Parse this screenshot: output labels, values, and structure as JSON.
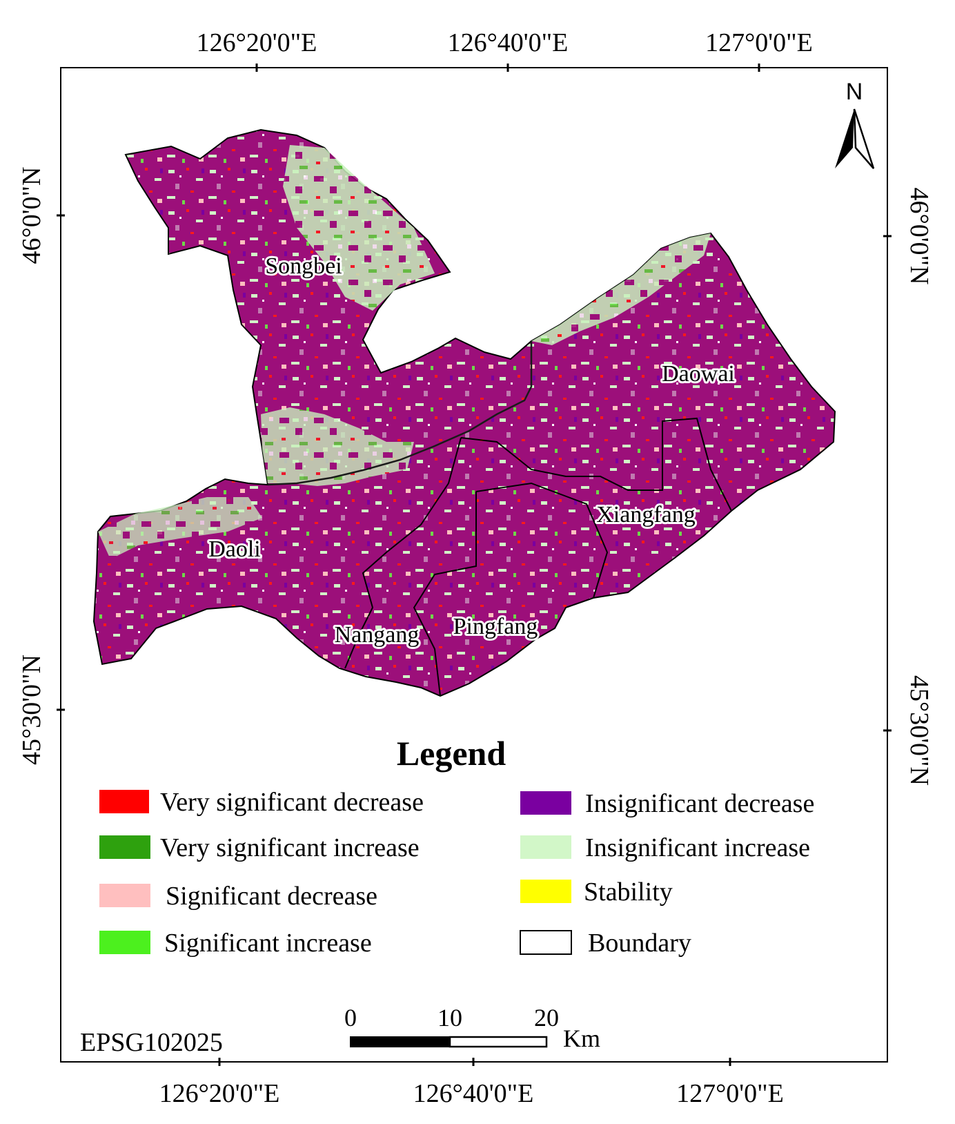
{
  "coords": {
    "top": [
      "126°20'0\"E",
      "126°40'0\"E",
      "127°0'0\"E"
    ],
    "bottom": [
      "126°20'0\"E",
      "126°40'0\"E",
      "127°0'0\"E"
    ],
    "left": [
      "46°0'0\"N",
      "45°30'0\"N"
    ],
    "right": [
      "46°0'0\"N",
      "45°30'0\"N"
    ]
  },
  "north_arrow": {
    "label": "N"
  },
  "districts": [
    "Songbei",
    "Daowai",
    "Xiangfang",
    "Daoli",
    "Nangang",
    "Pingfang"
  ],
  "legend": {
    "title": "Legend",
    "items": [
      {
        "label": "Very significant decrease",
        "color": "#ff0000"
      },
      {
        "label": "Very significant increase",
        "color": "#2ea10e"
      },
      {
        "label": "Significant decrease",
        "color": "#ffbfbf"
      },
      {
        "label": "Significant increase",
        "color": "#4cf01e"
      },
      {
        "label": "Insignificant decrease",
        "color": "#7a00a0"
      },
      {
        "label": "Insignificant increase",
        "color": "#d2f7c8"
      },
      {
        "label": "Stability",
        "color": "#ffff00"
      },
      {
        "label": "Boundary",
        "color": "#ffffff"
      }
    ]
  },
  "scale_bar": {
    "ticks": [
      "0",
      "10",
      "20"
    ],
    "unit": "Km"
  },
  "projection": "EPSG102025",
  "colors": {
    "dominant": "#9c0f7a",
    "frame": "#000000"
  }
}
